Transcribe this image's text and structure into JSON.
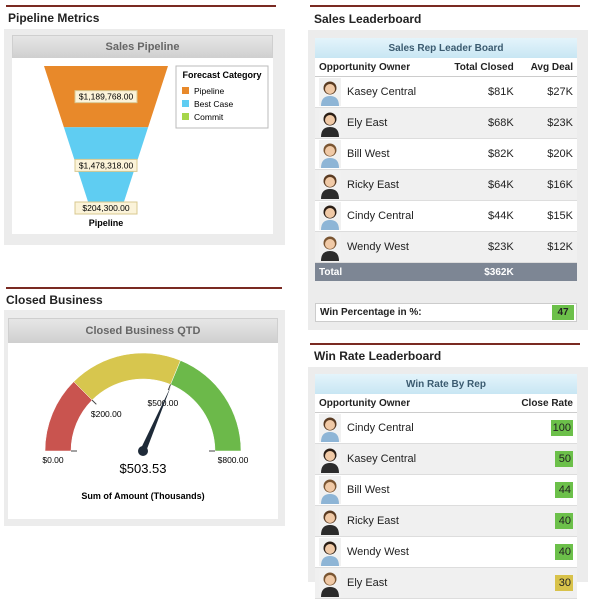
{
  "pipeline_metrics": {
    "heading": "Pipeline Metrics",
    "chart_title": "Sales Pipeline",
    "legend_title": "Forecast Category",
    "x_label": "Pipeline",
    "series": [
      {
        "name": "Pipeline",
        "color": "#e8892a",
        "value": 1189768,
        "value_label": "$1,189,768.00"
      },
      {
        "name": "Best Case",
        "color": "#5fcdf2",
        "value": 1478318,
        "value_label": "$1,478,318.00"
      },
      {
        "name": "Commit",
        "color": "#a6d64a",
        "value": 204300,
        "value_label": "$204,300.00"
      }
    ]
  },
  "closed_business": {
    "heading": "Closed Business",
    "chart_title": "Closed Business QTD",
    "axis_label": "Sum of Amount (Thousands)",
    "value": 503.53,
    "value_label": "$503.53",
    "ticks": [
      {
        "value": 0,
        "label": "$0.00"
      },
      {
        "value": 200,
        "label": "$200.00"
      },
      {
        "value": 500,
        "label": "$500.00"
      },
      {
        "value": 800,
        "label": "$800.00"
      }
    ],
    "ranges": [
      {
        "to": 200,
        "color": "#c9544f"
      },
      {
        "to": 500,
        "color": "#d7c64e"
      },
      {
        "to": 800,
        "color": "#6cb94a"
      }
    ]
  },
  "sales_leaderboard": {
    "heading": "Sales Leaderboard",
    "table_title": "Sales Rep Leader Board",
    "columns": [
      "Opportunity Owner",
      "Total Closed",
      "Avg Deal"
    ],
    "rows": [
      [
        "Kasey Central",
        "$81K",
        "$27K"
      ],
      [
        "Ely East",
        "$68K",
        "$23K"
      ],
      [
        "Bill West",
        "$82K",
        "$20K"
      ],
      [
        "Ricky East",
        "$64K",
        "$16K"
      ],
      [
        "Cindy Central",
        "$44K",
        "$15K"
      ],
      [
        "Wendy West",
        "$23K",
        "$12K"
      ]
    ],
    "total": {
      "label": "Total",
      "value": "$362K"
    }
  },
  "win_percentage": {
    "label": "Win Percentage in %:",
    "value": "47"
  },
  "win_rate_leaderboard": {
    "heading": "Win Rate Leaderboard",
    "table_title": "Win Rate By Rep",
    "columns": [
      "Opportunity Owner",
      "Close Rate"
    ],
    "rows": [
      {
        "owner": "Cindy Central",
        "rate": "100",
        "color": "#6cc04a"
      },
      {
        "owner": "Kasey Central",
        "rate": "50",
        "color": "#6cc04a"
      },
      {
        "owner": "Bill West",
        "rate": "44",
        "color": "#6cc04a"
      },
      {
        "owner": "Ricky East",
        "rate": "40",
        "color": "#6cc04a"
      },
      {
        "owner": "Wendy West",
        "rate": "40",
        "color": "#6cc04a"
      },
      {
        "owner": "Ely East",
        "rate": "30",
        "color": "#d8c24a"
      }
    ]
  }
}
